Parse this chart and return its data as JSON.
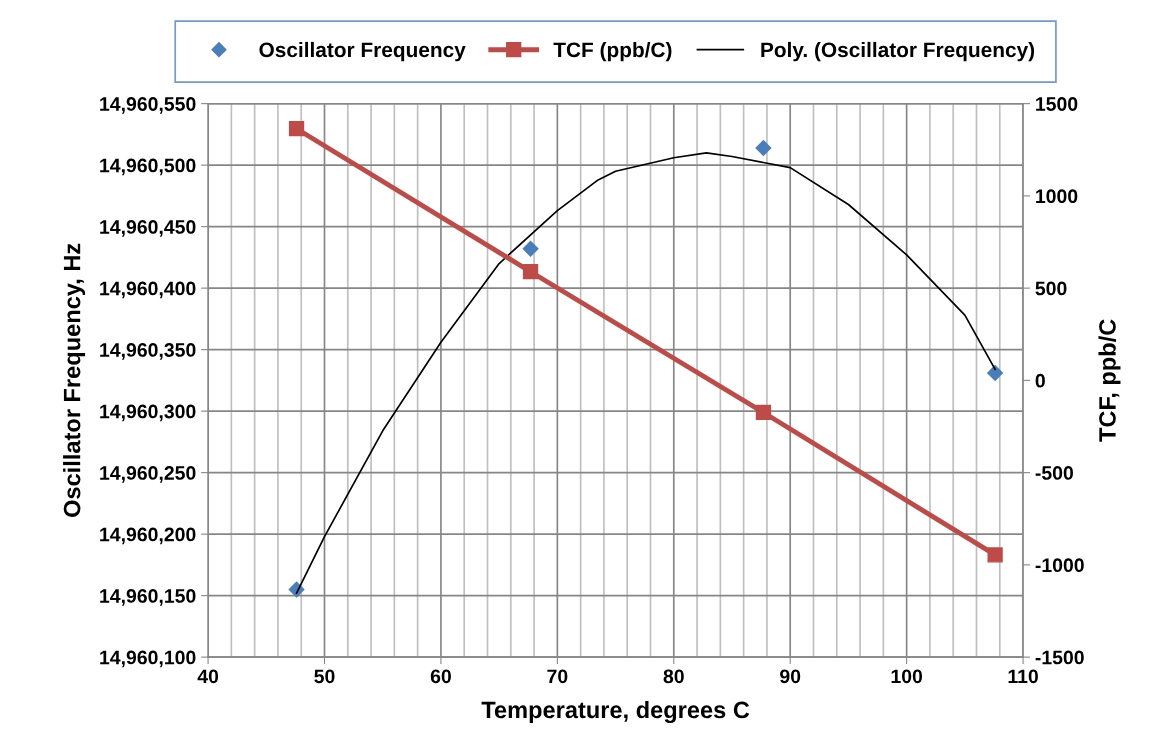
{
  "chart_data": {
    "type": "line",
    "xlabel": "Temperature, degrees C",
    "ylabel": "Oscillator Frequency, Hz",
    "y2label": "TCF, ppb/C",
    "x": [
      47.6,
      67.7,
      87.7,
      107.6
    ],
    "series": [
      {
        "name": "Oscillator Frequency",
        "type": "scatter",
        "color": "#4a7ebb",
        "marker": "diamond",
        "values": [
          14960155,
          14960432,
          14960514,
          14960331
        ]
      },
      {
        "name": "TCF (ppb/C)",
        "axis": "y2",
        "color": "#be4b48",
        "marker": "square",
        "line_style": "solid",
        "values": [
          1364,
          589,
          -174,
          -946
        ]
      },
      {
        "name": "Poly. (Oscillator Frequency)",
        "color": "#000000",
        "marker": "none",
        "line_style": "solid",
        "x": [
          47.6,
          50,
          55,
          60,
          65,
          70,
          73.5,
          75,
          80,
          82.8,
          85,
          90,
          95,
          100,
          105,
          107.6
        ],
        "values": [
          14960152,
          14960198,
          14960284,
          14960356,
          14960420,
          14960463,
          14960488,
          14960495,
          14960506,
          14960510,
          14960507,
          14960498,
          14960468,
          14960427,
          14960378,
          14960334
        ]
      }
    ],
    "xlim": [
      40,
      110
    ],
    "xticks": [
      40,
      {
        "value": 42,
        "label": null
      },
      {
        "value": 44,
        "label": null
      },
      {
        "value": 46,
        "label": null
      },
      {
        "value": 48,
        "label": null
      },
      50,
      {
        "value": 52,
        "label": null
      },
      {
        "value": 54,
        "label": null
      },
      {
        "value": 56,
        "label": null
      },
      {
        "value": 58,
        "label": null
      },
      60,
      {
        "value": 62,
        "label": null
      },
      {
        "value": 64,
        "label": null
      },
      {
        "value": 66,
        "label": null
      },
      {
        "value": 68,
        "label": null
      },
      70,
      {
        "value": 72,
        "label": null
      },
      {
        "value": 74,
        "label": null
      },
      {
        "value": 76,
        "label": null
      },
      {
        "value": 78,
        "label": null
      },
      80,
      {
        "value": 82,
        "label": null
      },
      {
        "value": 84,
        "label": null
      },
      {
        "value": 86,
        "label": null
      },
      {
        "value": 88,
        "label": null
      },
      90,
      {
        "value": 92,
        "label": null
      },
      {
        "value": 94,
        "label": null
      },
      {
        "value": 96,
        "label": null
      },
      {
        "value": 98,
        "label": null
      },
      100,
      {
        "value": 102,
        "label": null
      },
      {
        "value": 104,
        "label": null
      },
      {
        "value": 106,
        "label": null
      },
      {
        "value": 108,
        "label": null
      },
      110
    ],
    "ylim": [
      14960100,
      14960550
    ],
    "yticks": [
      {
        "value": 14960100,
        "label": "14,960,100"
      },
      {
        "value": 14960150,
        "label": "14,960,150"
      },
      {
        "value": 14960200,
        "label": "14,960,200"
      },
      {
        "value": 14960250,
        "label": "14,960,250"
      },
      {
        "value": 14960300,
        "label": "14,960,300"
      },
      {
        "value": 14960350,
        "label": "14,960,350"
      },
      {
        "value": 14960400,
        "label": "14,960,400"
      },
      {
        "value": 14960450,
        "label": "14,960,450"
      },
      {
        "value": 14960500,
        "label": "14,960,500"
      },
      {
        "value": 14960550,
        "label": "14,960,550"
      }
    ],
    "y2lim": [
      -1500,
      1500
    ],
    "y2ticks": [
      -1500,
      -1000,
      -500,
      0,
      500,
      1000,
      1500
    ],
    "grid": true,
    "legend": "top"
  }
}
